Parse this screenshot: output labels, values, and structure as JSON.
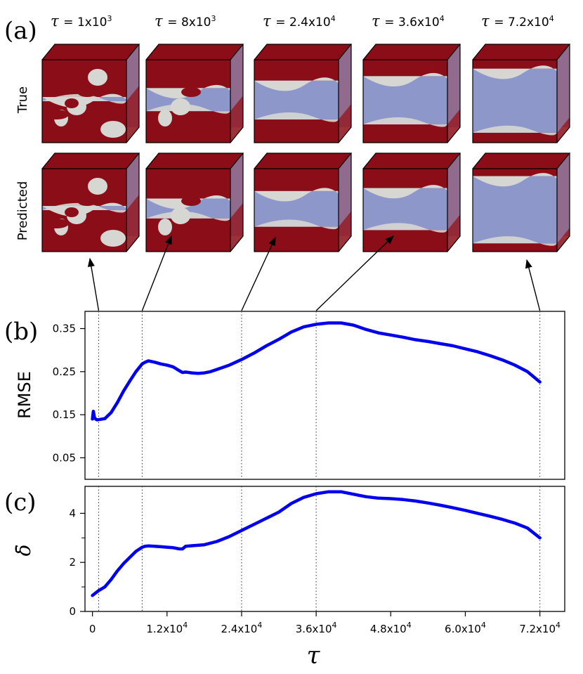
{
  "panel_a": {
    "letter": "(a)",
    "tau_symbol": "τ",
    "tau_labels": [
      "= 1x10",
      "= 8x10",
      "= 2.4x10",
      "= 3.6x10",
      "= 7.2x10"
    ],
    "tau_exps": [
      "3",
      "3",
      "4",
      "4",
      "4"
    ],
    "tau_values": [
      1000,
      8000,
      24000,
      36000,
      72000
    ],
    "row_labels": [
      "True",
      "Predicted"
    ],
    "interface_levels_true": [
      0.5,
      0.62,
      0.72,
      0.78,
      0.88
    ],
    "interface_levels_pred": [
      0.5,
      0.6,
      0.7,
      0.74,
      0.9
    ],
    "colors": {
      "red": "#8b0d18",
      "blue": "#8e97c9",
      "gray": "#d6d6d2"
    }
  },
  "chart_data": [
    {
      "type": "line",
      "panel": "(b)",
      "ylabel": "RMSE",
      "xlabel": "τ",
      "xlim": [
        -1200,
        76000
      ],
      "ylim": [
        0.0,
        0.39
      ],
      "yticks": [
        0.05,
        0.15,
        0.25,
        0.35
      ],
      "ytick_labels": [
        "0.05",
        "0.15",
        "0.25",
        "0.35"
      ],
      "vlines": [
        1000,
        8000,
        24000,
        36000,
        72000
      ],
      "color": "#0000ee",
      "x": [
        0,
        150,
        350,
        700,
        1200,
        2000,
        3000,
        4000,
        5000,
        6000,
        7000,
        8000,
        8500,
        9000,
        10000,
        11000,
        12000,
        13000,
        14000,
        14500,
        15000,
        16000,
        17000,
        18000,
        19000,
        20000,
        22000,
        24000,
        26000,
        28000,
        30000,
        32000,
        34000,
        36000,
        38000,
        40000,
        42000,
        44000,
        46000,
        48000,
        50000,
        52000,
        54000,
        56000,
        58000,
        60000,
        62000,
        64000,
        66000,
        68000,
        70000,
        72000
      ],
      "values": [
        0.14,
        0.158,
        0.142,
        0.138,
        0.139,
        0.141,
        0.155,
        0.178,
        0.205,
        0.228,
        0.25,
        0.268,
        0.272,
        0.275,
        0.272,
        0.268,
        0.265,
        0.261,
        0.252,
        0.248,
        0.249,
        0.247,
        0.246,
        0.247,
        0.25,
        0.255,
        0.265,
        0.278,
        0.293,
        0.31,
        0.325,
        0.342,
        0.354,
        0.36,
        0.363,
        0.363,
        0.358,
        0.348,
        0.34,
        0.335,
        0.33,
        0.324,
        0.32,
        0.315,
        0.31,
        0.303,
        0.296,
        0.287,
        0.277,
        0.265,
        0.25,
        0.226
      ]
    },
    {
      "type": "line",
      "panel": "(c)",
      "ylabel": "δ̄",
      "xlabel": "τ",
      "xlim": [
        -1200,
        76000
      ],
      "ylim": [
        0,
        5.1
      ],
      "yticks": [
        0,
        2,
        4
      ],
      "ytick_labels": [
        "0",
        "2",
        "4"
      ],
      "xticks": [
        0,
        12000,
        24000,
        36000,
        48000,
        60000,
        72000
      ],
      "xtick_labels": [
        "0",
        "1.2x10",
        "2.4x10",
        "3.6x10",
        "4.8x10",
        "6.0x10",
        "7.2x10"
      ],
      "xtick_exps": [
        "",
        "4",
        "4",
        "4",
        "4",
        "4",
        "4"
      ],
      "vlines": [
        1000,
        8000,
        24000,
        36000,
        72000
      ],
      "color": "#0000ee",
      "x": [
        0,
        500,
        1000,
        2000,
        3000,
        4000,
        5000,
        6000,
        7000,
        8000,
        8500,
        9000,
        10000,
        11000,
        12000,
        13000,
        14000,
        14500,
        15000,
        16000,
        18000,
        20000,
        22000,
        24000,
        26000,
        28000,
        30000,
        32000,
        34000,
        36000,
        38000,
        40000,
        42000,
        44000,
        46000,
        48000,
        50000,
        52000,
        54000,
        56000,
        58000,
        60000,
        62000,
        64000,
        66000,
        68000,
        70000,
        72000
      ],
      "values": [
        0.65,
        0.75,
        0.85,
        1.0,
        1.3,
        1.65,
        1.95,
        2.2,
        2.45,
        2.62,
        2.66,
        2.67,
        2.66,
        2.64,
        2.62,
        2.6,
        2.55,
        2.55,
        2.66,
        2.68,
        2.72,
        2.85,
        3.05,
        3.3,
        3.55,
        3.8,
        4.05,
        4.4,
        4.65,
        4.8,
        4.88,
        4.88,
        4.78,
        4.68,
        4.62,
        4.6,
        4.56,
        4.5,
        4.42,
        4.33,
        4.23,
        4.12,
        4.0,
        3.88,
        3.75,
        3.6,
        3.4,
        3.0
      ]
    }
  ]
}
